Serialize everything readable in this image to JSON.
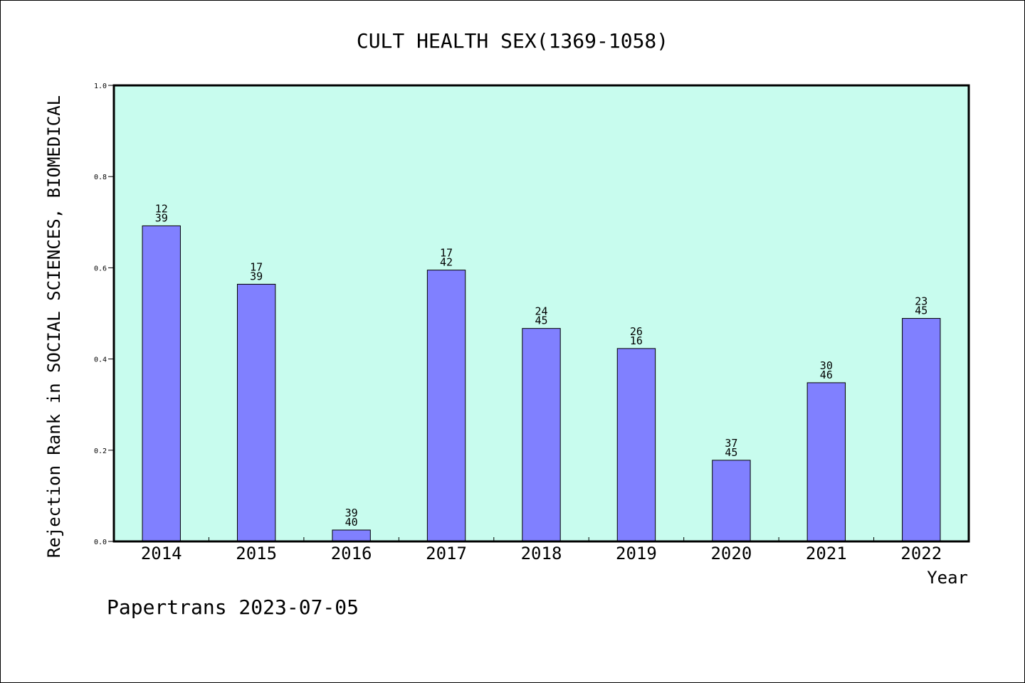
{
  "chart_data": {
    "type": "bar",
    "title": "CULT HEALTH SEX(1369-1058)",
    "xlabel": "Year",
    "ylabel": "Rejection Rank in SOCIAL SCIENCES, BIOMEDICAL",
    "categories": [
      "2014",
      "2015",
      "2016",
      "2017",
      "2018",
      "2019",
      "2020",
      "2021",
      "2022"
    ],
    "values": [
      0.692,
      0.564,
      0.025,
      0.595,
      0.467,
      0.423,
      0.178,
      0.348,
      0.489
    ],
    "bar_labels": [
      [
        "12",
        "39"
      ],
      [
        "17",
        "39"
      ],
      [
        "39",
        "40"
      ],
      [
        "17",
        "42"
      ],
      [
        "24",
        "45"
      ],
      [
        "26",
        "16"
      ],
      [
        "37",
        "45"
      ],
      [
        "30",
        "46"
      ],
      [
        "23",
        "45"
      ]
    ],
    "ylim": [
      0,
      1.0
    ],
    "yticks": [
      "0.0",
      "0.2",
      "0.4",
      "0.6",
      "0.8",
      "1.0"
    ],
    "grid": false,
    "colors": {
      "plot_background": "#c8fcee",
      "bar_fill": "#8080ff",
      "bar_stroke": "#000000",
      "frame": "#000000"
    }
  },
  "footer": {
    "text": "Papertrans 2023-07-05"
  }
}
